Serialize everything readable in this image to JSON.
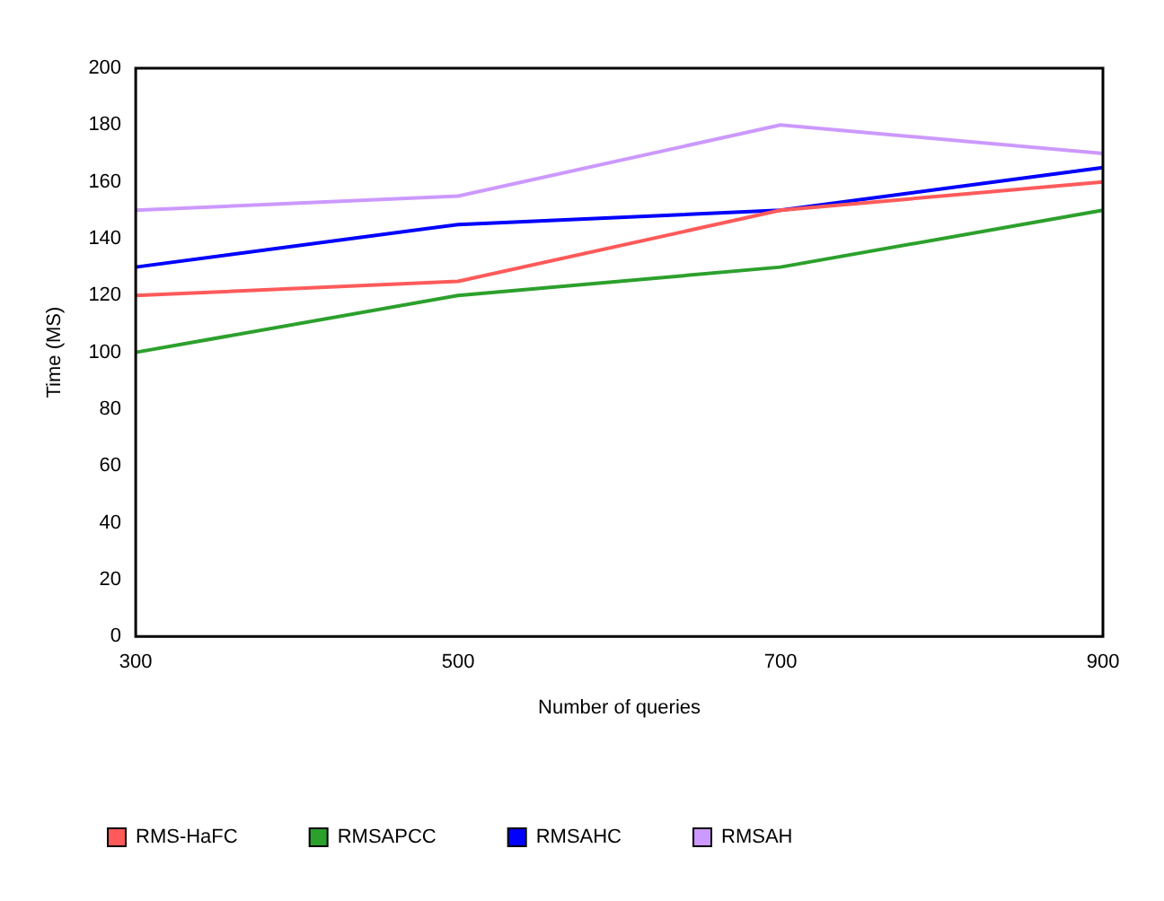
{
  "chart_data": {
    "type": "line",
    "xlabel": "Number of queries",
    "ylabel": "Time (MS)",
    "categories": [
      "300",
      "500",
      "700",
      "900"
    ],
    "series": [
      {
        "name": "RMS-HaFC",
        "color": "#ff5a5a",
        "values": [
          120,
          125,
          150,
          160
        ]
      },
      {
        "name": "RMSAPCC",
        "color": "#2ca02c",
        "values": [
          100,
          120,
          130,
          150
        ]
      },
      {
        "name": "RMSAHC",
        "color": "#0000ff",
        "values": [
          130,
          145,
          150,
          165
        ]
      },
      {
        "name": "RMSAH",
        "color": "#cc99ff",
        "values": [
          150,
          155,
          180,
          170
        ]
      }
    ],
    "ylim": [
      0,
      200
    ],
    "yticks": [
      0,
      20,
      40,
      60,
      80,
      100,
      120,
      140,
      160,
      180,
      200
    ],
    "grid": false,
    "legend": "bottom left",
    "marker": "none",
    "line_style": "solid"
  }
}
